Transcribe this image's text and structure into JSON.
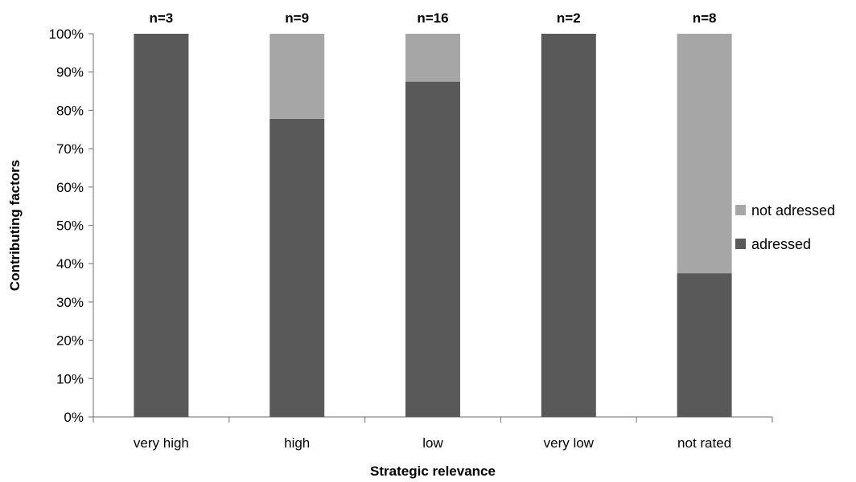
{
  "chart_data": {
    "type": "bar",
    "stacked": true,
    "categories": [
      "very high",
      "high",
      "low",
      "very low",
      "not rated"
    ],
    "data_labels": [
      "n=3",
      "n=9",
      "n=16",
      "n=2",
      "n=8"
    ],
    "series": [
      {
        "name": "adressed",
        "values": [
          100,
          77.8,
          87.5,
          100,
          37.5
        ],
        "color": "#595959"
      },
      {
        "name": "not adressed",
        "values": [
          0,
          22.2,
          12.5,
          0,
          62.5
        ],
        "color": "#a6a6a6"
      }
    ],
    "xlabel": "Strategic relevance",
    "ylabel": "Contributing factors",
    "ylim": [
      0,
      100
    ],
    "yticks": [
      "0%",
      "10%",
      "20%",
      "30%",
      "40%",
      "50%",
      "60%",
      "70%",
      "80%",
      "90%",
      "100%"
    ],
    "grid": false,
    "legend_position": "right",
    "legend_order": [
      "not adressed",
      "adressed"
    ]
  }
}
